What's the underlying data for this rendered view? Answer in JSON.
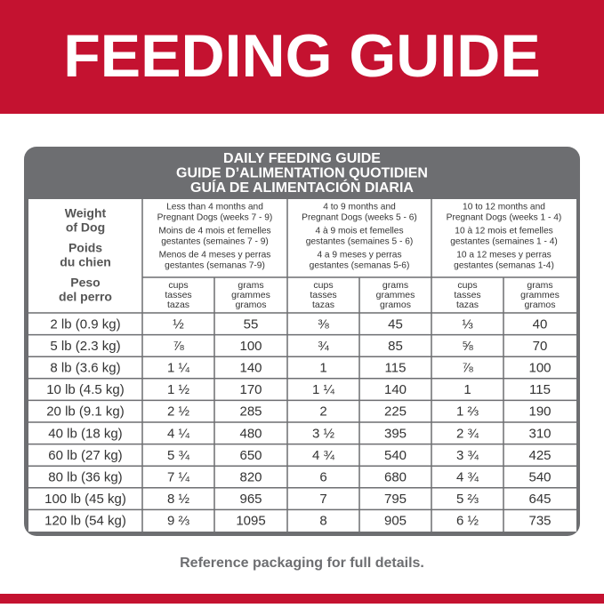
{
  "header": {
    "title": "FEEDING GUIDE"
  },
  "table": {
    "titles": [
      "DAILY FEEDING GUIDE",
      "GUIDE D’ALIMENTATION QUOTIDIEN",
      "GUÍA DE ALIMENTACIÓN DIARIA"
    ],
    "first_header": [
      "Weight",
      "of Dog",
      "Poids",
      "du chien",
      "Peso",
      "del perro"
    ],
    "groups": [
      [
        "Less than 4 months and",
        "Pregnant Dogs (weeks 7 - 9)",
        "Moins de 4 mois et femelles",
        "gestantes (semaines 7 - 9)",
        "Menos de 4 meses y perras",
        "gestantes (semanas 7-9)"
      ],
      [
        "4 to 9 months and",
        "Pregnant Dogs (weeks 5 - 6)",
        "4 à 9 mois et femelles",
        "gestantes (semaines 5 - 6)",
        "4 a 9 meses y perras",
        "gestantes (semanas 5-6)"
      ],
      [
        "10 to 12 months and",
        "Pregnant Dogs (weeks 1 - 4)",
        "10 à 12 mois et femelles",
        "gestantes (semaines 1 - 4)",
        "10 a 12 meses y perras",
        "gestantes (semanas 1-4)"
      ]
    ],
    "sub_headers": [
      [
        "cups",
        "tasses",
        "tazas"
      ],
      [
        "grams",
        "grammes",
        "gramos"
      ]
    ],
    "rows": [
      [
        "2 lb (0.9 kg)",
        "½",
        55,
        "⅜",
        45,
        "⅓",
        40
      ],
      [
        "5 lb (2.3 kg)",
        "⅞",
        100,
        "¾",
        85,
        "⅝",
        70
      ],
      [
        "8 lb (3.6 kg)",
        "1 ¼",
        140,
        "1",
        115,
        "⅞",
        100
      ],
      [
        "10 lb (4.5 kg)",
        "1 ½",
        170,
        "1 ¼",
        140,
        "1",
        115
      ],
      [
        "20 lb (9.1 kg)",
        "2 ½",
        285,
        "2",
        225,
        "1 ⅔",
        190
      ],
      [
        "40 lb (18 kg)",
        "4 ¼",
        480,
        "3 ½",
        395,
        "2 ¾",
        310
      ],
      [
        "60 lb (27 kg)",
        "5 ¾",
        650,
        "4 ¾",
        540,
        "3 ¾",
        425
      ],
      [
        "80 lb (36 kg)",
        "7 ¼",
        820,
        "6",
        680,
        "4 ¾",
        540
      ],
      [
        "100 lb (45 kg)",
        "8 ½",
        965,
        "7",
        795,
        "5 ⅔",
        645
      ],
      [
        "120 lb (54 kg)",
        "9 ⅔",
        1095,
        "8",
        905,
        "6 ½",
        735
      ]
    ]
  },
  "footer": {
    "note": "Reference packaging for full details."
  }
}
